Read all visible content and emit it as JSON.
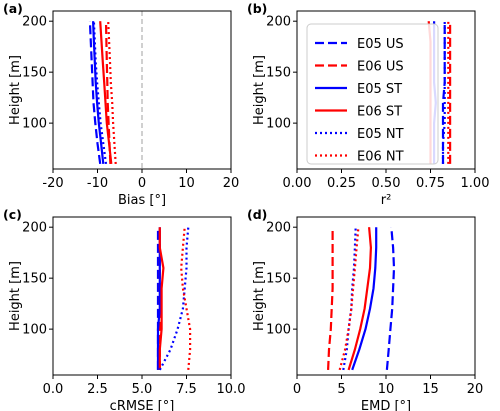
{
  "figure_lines": {
    "series": [
      {
        "name": "E05 US",
        "color": "#0000ff",
        "style": "dashed"
      },
      {
        "name": "E06 US",
        "color": "#ff0000",
        "style": "dashed"
      },
      {
        "name": "E05 ST",
        "color": "#0000ff",
        "style": "solid"
      },
      {
        "name": "E06 ST",
        "color": "#ff0000",
        "style": "solid"
      },
      {
        "name": "E05 NT",
        "color": "#0000ff",
        "style": "dotted"
      },
      {
        "name": "E06 NT",
        "color": "#ff0000",
        "style": "dotted"
      }
    ],
    "legend_panel": 1,
    "legend_loc": "upper right"
  },
  "chart_data": [
    {
      "type": "line",
      "panel_label": "(a)",
      "xlabel": "Bias [°]",
      "ylabel": "Height [m]",
      "xlim": [
        -20,
        20
      ],
      "ylim": [
        55,
        210
      ],
      "xticks": [
        -20,
        -10,
        0,
        10,
        20
      ],
      "yticks": [
        100,
        150,
        200
      ],
      "reference_vline": 0,
      "heights": [
        60,
        80,
        100,
        120,
        140,
        160,
        180,
        200
      ],
      "series": [
        {
          "values": [
            -9.4,
            -10.0,
            -10.5,
            -10.9,
            -11.1,
            -11.3,
            -11.5,
            -11.7
          ]
        },
        {
          "values": [
            -7.1,
            -7.3,
            -7.5,
            -7.7,
            -7.8,
            -7.9,
            -8.0,
            -8.1
          ]
        },
        {
          "values": [
            -8.7,
            -9.2,
            -9.7,
            -10.1,
            -10.4,
            -10.6,
            -10.8,
            -11.0
          ]
        },
        {
          "values": [
            -6.9,
            -7.4,
            -7.9,
            -8.2,
            -8.5,
            -8.8,
            -9.1,
            -9.4
          ]
        },
        {
          "values": [
            -8.1,
            -8.7,
            -9.3,
            -9.7,
            -10.1,
            -10.4,
            -10.6,
            -10.8
          ]
        },
        {
          "values": [
            -5.9,
            -6.2,
            -6.5,
            -6.7,
            -7.0,
            -7.2,
            -7.4,
            -7.6
          ]
        }
      ]
    },
    {
      "type": "line",
      "panel_label": "(b)",
      "xlabel": "r²",
      "ylabel": "Height [m]",
      "xlim": [
        0.0,
        1.0
      ],
      "ylim": [
        55,
        210
      ],
      "xticks": [
        0.0,
        0.25,
        0.5,
        0.75,
        1.0
      ],
      "xtick_labels": [
        "0.00",
        "0.25",
        "0.50",
        "0.75",
        "1.00"
      ],
      "yticks": [
        100,
        150,
        200
      ],
      "heights": [
        60,
        80,
        100,
        120,
        140,
        160,
        180,
        200
      ],
      "series": [
        {
          "values": [
            0.82,
            0.82,
            0.82,
            0.82,
            0.83,
            0.83,
            0.83,
            0.83
          ]
        },
        {
          "values": [
            0.86,
            0.86,
            0.86,
            0.86,
            0.86,
            0.86,
            0.86,
            0.86
          ]
        },
        {
          "values": [
            0.77,
            0.77,
            0.77,
            0.78,
            0.77,
            0.77,
            0.77,
            0.77
          ]
        },
        {
          "values": [
            0.75,
            0.75,
            0.75,
            0.75,
            0.75,
            0.75,
            0.75,
            0.74
          ]
        },
        {
          "values": [
            0.82,
            0.82,
            0.83,
            0.83,
            0.83,
            0.83,
            0.83,
            0.83
          ]
        },
        {
          "values": [
            0.85,
            0.85,
            0.85,
            0.85,
            0.85,
            0.85,
            0.85,
            0.85
          ]
        }
      ]
    },
    {
      "type": "line",
      "panel_label": "(c)",
      "xlabel": "cRMSE [°]",
      "ylabel": "Height [m]",
      "xlim": [
        0.0,
        10.0
      ],
      "ylim": [
        55,
        210
      ],
      "xticks": [
        0,
        2.5,
        5,
        7.5,
        10
      ],
      "xtick_labels": [
        "0.0",
        "2.5",
        "5.0",
        "7.5",
        "10.0"
      ],
      "yticks": [
        100,
        150,
        200
      ],
      "heights": [
        60,
        80,
        100,
        120,
        140,
        160,
        180,
        200
      ],
      "series": [
        {
          "values": [
            5.9,
            5.9,
            5.9,
            5.9,
            5.9,
            5.9,
            5.9,
            5.9
          ]
        },
        {
          "values": [
            6.0,
            6.0,
            6.0,
            6.0,
            6.0,
            6.0,
            6.0,
            6.0
          ]
        },
        {
          "values": [
            5.9,
            5.9,
            5.9,
            6.0,
            6.0,
            6.0,
            6.0,
            6.0
          ]
        },
        {
          "values": [
            6.0,
            6.0,
            6.1,
            6.1,
            6.1,
            6.2,
            6.0,
            6.0
          ]
        },
        {
          "values": [
            6.0,
            6.6,
            7.0,
            7.3,
            7.4,
            7.5,
            7.5,
            7.6
          ]
        },
        {
          "values": [
            7.6,
            7.7,
            7.7,
            7.5,
            7.3,
            7.2,
            7.3,
            7.4
          ]
        }
      ]
    },
    {
      "type": "line",
      "panel_label": "(d)",
      "xlabel": "EMD [°]",
      "ylabel": "Height [m]",
      "xlim": [
        0,
        20
      ],
      "ylim": [
        55,
        210
      ],
      "xticks": [
        0,
        5,
        10,
        15,
        20
      ],
      "yticks": [
        100,
        150,
        200
      ],
      "heights": [
        60,
        80,
        100,
        120,
        140,
        160,
        180,
        200
      ],
      "series": [
        {
          "values": [
            10.1,
            10.3,
            10.5,
            10.7,
            10.8,
            10.9,
            10.8,
            10.6
          ]
        },
        {
          "values": [
            3.5,
            3.6,
            3.8,
            3.9,
            4.0,
            4.0,
            4.0,
            4.0
          ]
        },
        {
          "values": [
            6.2,
            7.0,
            7.7,
            8.2,
            8.6,
            8.8,
            8.9,
            8.9
          ]
        },
        {
          "values": [
            5.8,
            6.5,
            7.1,
            7.6,
            7.9,
            8.2,
            8.3,
            8.1
          ]
        },
        {
          "values": [
            5.2,
            5.6,
            5.8,
            6.1,
            6.2,
            6.4,
            6.5,
            6.6
          ]
        },
        {
          "values": [
            4.8,
            5.4,
            5.8,
            6.1,
            6.3,
            6.5,
            6.7,
            6.9
          ]
        }
      ]
    }
  ]
}
